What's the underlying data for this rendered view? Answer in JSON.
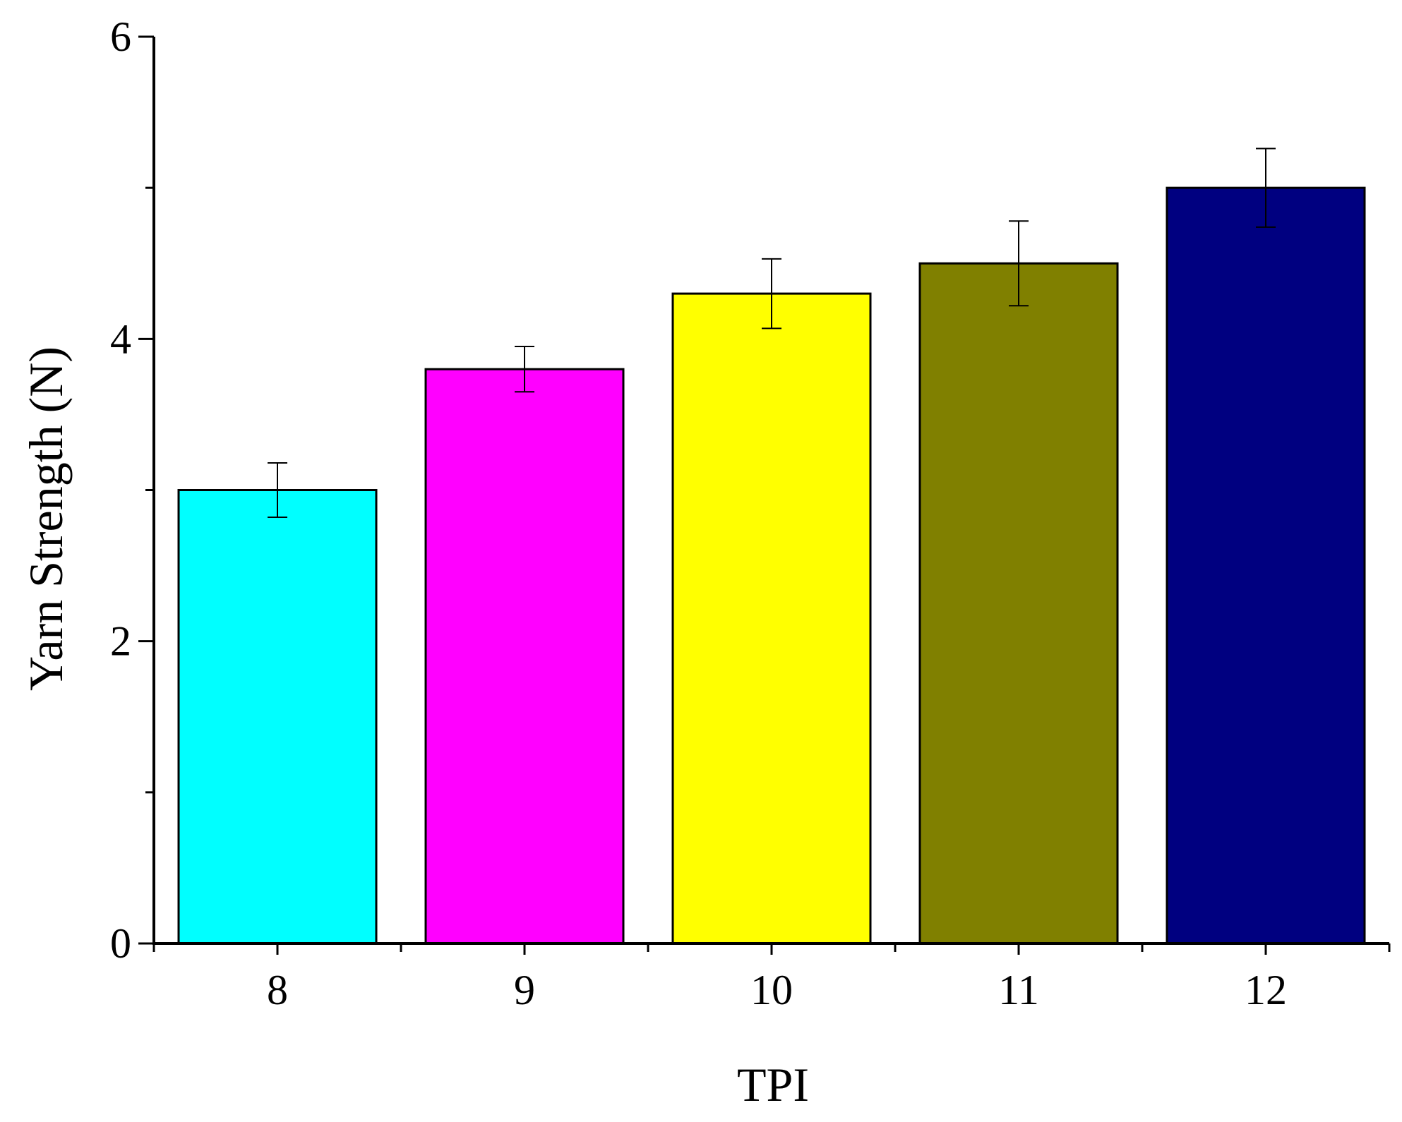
{
  "chart_data": {
    "type": "bar",
    "title": "",
    "xlabel": "TPI",
    "ylabel": "Yarn Strength (N)",
    "categories": [
      "8",
      "9",
      "10",
      "11",
      "12"
    ],
    "values": [
      3.0,
      3.8,
      4.3,
      4.5,
      5.0
    ],
    "errors": [
      0.18,
      0.15,
      0.23,
      0.28,
      0.26
    ],
    "colors": [
      "#00FFFF",
      "#FF00FF",
      "#FFFF00",
      "#808000",
      "#000080"
    ],
    "ylim": [
      0,
      6
    ],
    "yticks": [
      "0",
      "2",
      "4",
      "6"
    ],
    "y_minor_ticks": [
      1,
      3,
      5
    ],
    "grid": false,
    "legend": "none"
  }
}
